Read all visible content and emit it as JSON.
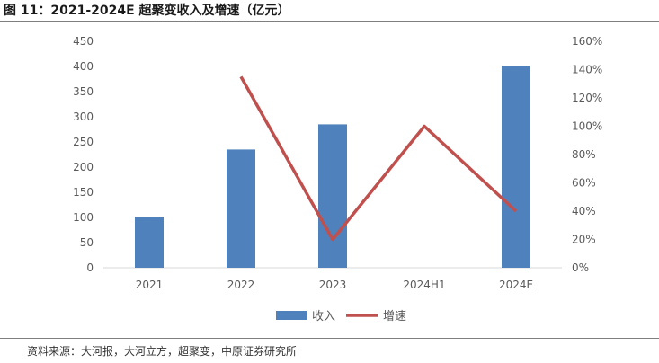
{
  "figure": {
    "title": "图 11：2021-2024E 超聚变收入及增速（亿元）",
    "source": "资料来源：大河报，大河立方，超聚变，中原证券研究所"
  },
  "colors": {
    "bar": "#4f81bd",
    "line": "#c0504d",
    "axis": "#d9d9d9",
    "tick": "#595959"
  },
  "chart_data": {
    "type": "bar",
    "categories": [
      "2021",
      "2022",
      "2023",
      "2024H1",
      "2024E"
    ],
    "series": [
      {
        "name": "收入",
        "type": "bar",
        "axis": "left",
        "values": [
          100,
          235,
          285,
          null,
          400
        ]
      },
      {
        "name": "增速",
        "type": "line",
        "axis": "right",
        "values": [
          null,
          1.35,
          0.2,
          1.0,
          0.4
        ]
      }
    ],
    "y_left": {
      "min": 0,
      "max": 450,
      "ticks": [
        "0",
        "50",
        "100",
        "150",
        "200",
        "250",
        "300",
        "350",
        "400",
        "450"
      ]
    },
    "y_right": {
      "min": 0,
      "max": 1.6,
      "ticks": [
        "0%",
        "20%",
        "40%",
        "60%",
        "80%",
        "100%",
        "120%",
        "140%",
        "160%"
      ]
    },
    "legend": {
      "position": "bottom",
      "items": [
        "收入",
        "增速"
      ]
    },
    "grid": false
  }
}
